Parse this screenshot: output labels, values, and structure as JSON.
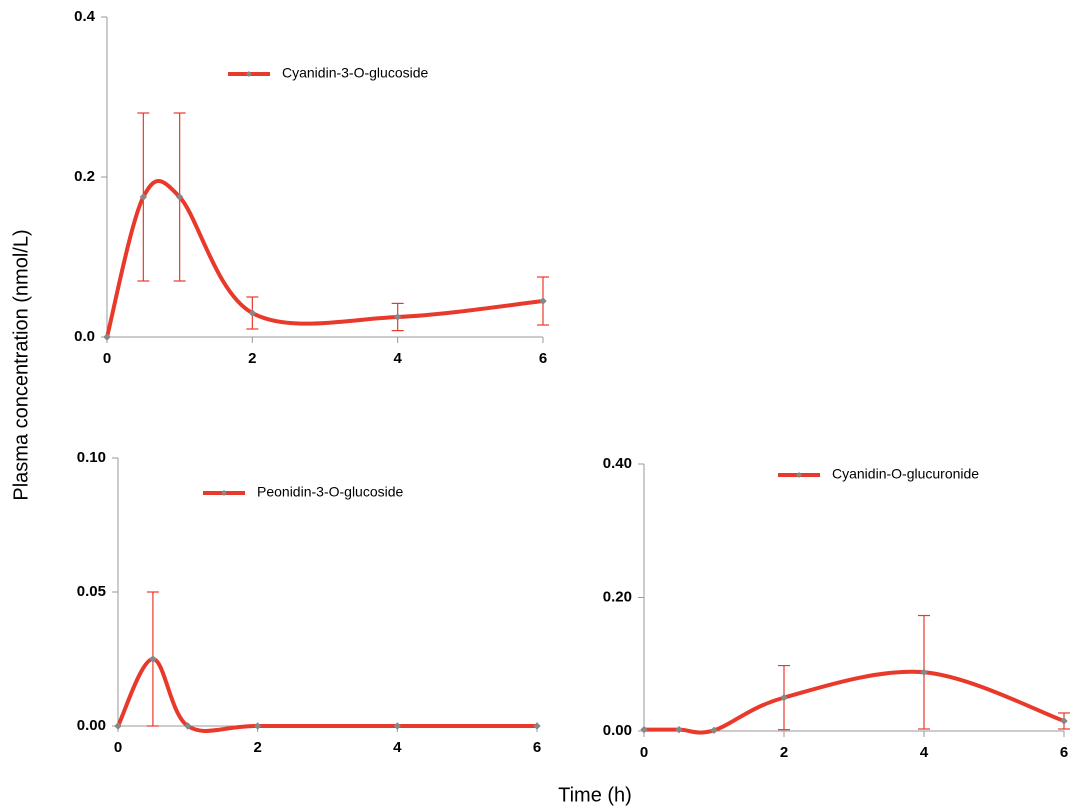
{
  "ylabel": "Plasma concentration (nmol/L)",
  "xlabel": "Time (h)",
  "chart_data": [
    {
      "type": "line",
      "x": [
        0,
        0.5,
        1,
        2,
        4,
        6
      ],
      "xlim": [
        0,
        6
      ],
      "xticks": [
        0,
        2,
        4,
        6
      ],
      "ylim": [
        0,
        0.4
      ],
      "yticks": [
        {
          "value": 0,
          "label": "0.0"
        },
        0.2,
        0.4
      ],
      "series": [
        {
          "name": "Cyanidin-3-O-glucoside",
          "color": "#e8392b",
          "values": [
            0,
            0.175,
            0.175,
            0.03,
            0.025,
            0.045
          ],
          "errors": [
            0,
            0.105,
            0.105,
            0.02,
            0.017,
            0.03
          ]
        }
      ]
    },
    {
      "type": "line",
      "x": [
        0,
        0.5,
        1,
        2,
        4,
        6
      ],
      "xlim": [
        0,
        6
      ],
      "xticks": [
        0,
        2,
        4,
        6
      ],
      "ylim": [
        0,
        0.1
      ],
      "yticks": [
        {
          "value": 0,
          "label": "0.00"
        },
        0.05,
        {
          "value": 0.1,
          "label": "0.10"
        }
      ],
      "series": [
        {
          "name": "Peonidin-3-O-glucoside",
          "color": "#e8392b",
          "values": [
            0,
            0.025,
            0,
            0,
            0,
            0
          ],
          "errors": [
            0,
            0.025,
            0,
            0,
            0,
            0
          ]
        }
      ]
    },
    {
      "type": "line",
      "x": [
        0,
        0.5,
        1,
        2,
        4,
        6
      ],
      "xlim": [
        0,
        6
      ],
      "xticks": [
        0,
        2,
        4,
        6
      ],
      "ylim": [
        0,
        0.4
      ],
      "yticks": [
        {
          "value": 0,
          "label": "0.00"
        },
        {
          "value": 0.2,
          "label": "0.20"
        },
        {
          "value": 0.4,
          "label": "0.40"
        }
      ],
      "series": [
        {
          "name": "Cyanidin-O-glucuronide",
          "color": "#e8392b",
          "values": [
            0.002,
            0.002,
            0.001,
            0.05,
            0.088,
            0.015
          ],
          "errors": [
            0,
            0,
            0,
            0.048,
            0.085,
            0.012
          ]
        }
      ]
    }
  ]
}
